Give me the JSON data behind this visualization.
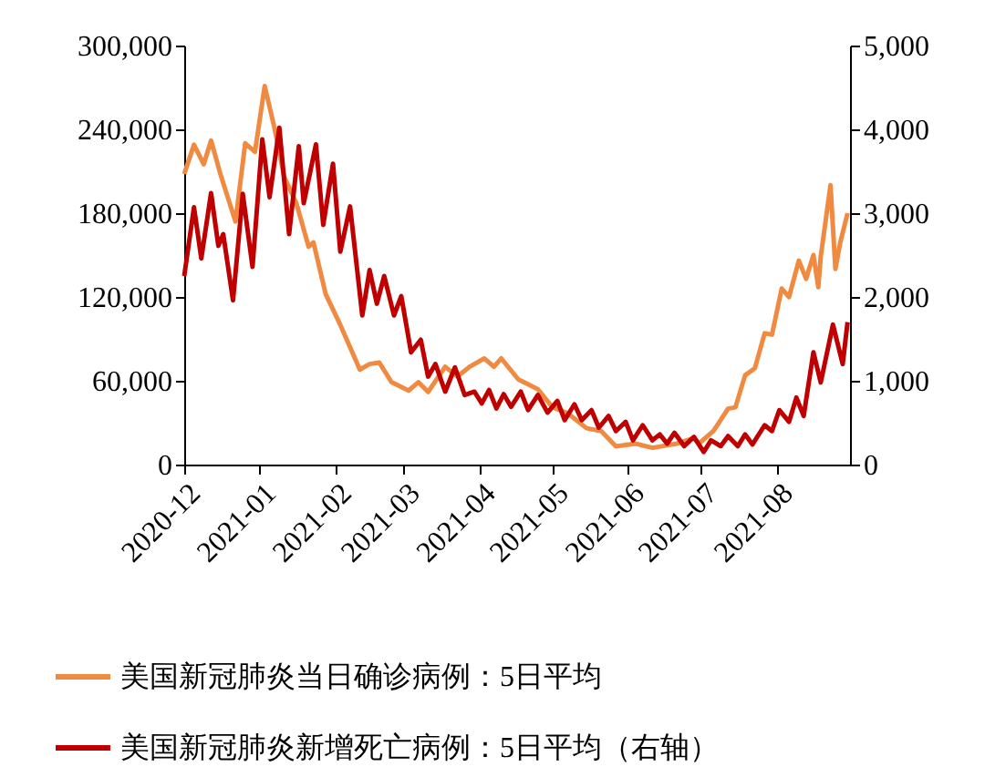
{
  "chart_data": {
    "type": "line",
    "xlim": [
      "2020-12-01",
      "2021-08-31"
    ],
    "xticks": [
      {
        "value": "2020-12-01",
        "label": "2020-12"
      },
      {
        "value": "2021-01-01",
        "label": "2021-01"
      },
      {
        "value": "2021-02-01",
        "label": "2021-02"
      },
      {
        "value": "2021-03-01",
        "label": "2021-03"
      },
      {
        "value": "2021-04-01",
        "label": "2021-04"
      },
      {
        "value": "2021-05-01",
        "label": "2021-05"
      },
      {
        "value": "2021-06-01",
        "label": "2021-06"
      },
      {
        "value": "2021-07-01",
        "label": "2021-07"
      },
      {
        "value": "2021-08-01",
        "label": "2021-08"
      }
    ],
    "ylim": [
      0,
      300000
    ],
    "yticks": [
      {
        "value": 0,
        "label": "0"
      },
      {
        "value": 60000,
        "label": "60,000"
      },
      {
        "value": 120000,
        "label": "120,000"
      },
      {
        "value": 180000,
        "label": "180,000"
      },
      {
        "value": 240000,
        "label": "240,000"
      },
      {
        "value": 300000,
        "label": "300,000"
      }
    ],
    "y2lim": [
      0,
      5000
    ],
    "y2ticks": [
      {
        "value": 0,
        "label": "0"
      },
      {
        "value": 1000,
        "label": "1,000"
      },
      {
        "value": 2000,
        "label": "2,000"
      },
      {
        "value": 3000,
        "label": "3,000"
      },
      {
        "value": 4000,
        "label": "4,000"
      },
      {
        "value": 5000,
        "label": "5,000"
      }
    ],
    "grid": false,
    "legend": "bottom",
    "line_style": "solid",
    "marker": "none",
    "series": [
      {
        "name": "美国新冠肺炎当日确诊病例：5日平均",
        "color": "#f08a41",
        "x": [
          "2020-12-01",
          "2020-12-05",
          "2020-12-09",
          "2020-12-12",
          "2020-12-16",
          "2020-12-22",
          "2020-12-26",
          "2020-12-30",
          "2021-01-03",
          "2021-01-07",
          "2021-01-11",
          "2021-01-16",
          "2021-01-21",
          "2021-01-23",
          "2021-01-28",
          "2021-02-03",
          "2021-02-11",
          "2021-02-15",
          "2021-02-19",
          "2021-02-24",
          "2021-03-03",
          "2021-03-07",
          "2021-03-11",
          "2021-03-18",
          "2021-03-23",
          "2021-03-28",
          "2021-04-03",
          "2021-04-07",
          "2021-04-10",
          "2021-04-17",
          "2021-04-25",
          "2021-05-01",
          "2021-05-07",
          "2021-05-15",
          "2021-05-21",
          "2021-05-27",
          "2021-06-04",
          "2021-06-11",
          "2021-06-21",
          "2021-06-28",
          "2021-06-30",
          "2021-07-06",
          "2021-07-12",
          "2021-07-15",
          "2021-07-19",
          "2021-07-23",
          "2021-07-27",
          "2021-07-30",
          "2021-08-03",
          "2021-08-06",
          "2021-08-10",
          "2021-08-13",
          "2021-08-16",
          "2021-08-18",
          "2021-08-19",
          "2021-08-23",
          "2021-08-25",
          "2021-08-27",
          "2021-08-30"
        ],
        "values": [
          208000,
          229000,
          215000,
          232000,
          207000,
          174000,
          230000,
          224000,
          271000,
          241000,
          206000,
          187000,
          156000,
          159000,
          122000,
          100000,
          68000,
          72000,
          73000,
          59000,
          53000,
          59000,
          52000,
          70000,
          63000,
          70000,
          76000,
          70000,
          76000,
          61000,
          54000,
          41000,
          37000,
          26000,
          24000,
          13000,
          15000,
          12000,
          15000,
          19000,
          15000,
          24000,
          40000,
          41000,
          64000,
          69000,
          94000,
          93000,
          126000,
          120000,
          146000,
          133000,
          150000,
          127000,
          149000,
          200000,
          140000,
          159000,
          180000
        ]
      },
      {
        "name": "美国新冠肺炎新增死亡病例：5日平均（右轴）",
        "color": "#c00000",
        "axis": "y2",
        "x": [
          "2020-12-01",
          "2020-12-05",
          "2020-12-08",
          "2020-12-12",
          "2020-12-15",
          "2020-12-17",
          "2020-12-21",
          "2020-12-25",
          "2020-12-29",
          "2021-01-02",
          "2021-01-05",
          "2021-01-09",
          "2021-01-13",
          "2021-01-17",
          "2021-01-19",
          "2021-01-24",
          "2021-01-27",
          "2021-01-31",
          "2021-02-03",
          "2021-02-07",
          "2021-02-12",
          "2021-02-15",
          "2021-02-18",
          "2021-02-21",
          "2021-02-25",
          "2021-02-28",
          "2021-03-04",
          "2021-03-08",
          "2021-03-11",
          "2021-03-14",
          "2021-03-18",
          "2021-03-22",
          "2021-03-26",
          "2021-03-30",
          "2021-04-02",
          "2021-04-05",
          "2021-04-08",
          "2021-04-11",
          "2021-04-14",
          "2021-04-18",
          "2021-04-21",
          "2021-04-25",
          "2021-04-29",
          "2021-05-03",
          "2021-05-06",
          "2021-05-10",
          "2021-05-13",
          "2021-05-17",
          "2021-05-20",
          "2021-05-24",
          "2021-05-27",
          "2021-05-31",
          "2021-06-03",
          "2021-06-07",
          "2021-06-11",
          "2021-06-14",
          "2021-06-17",
          "2021-06-20",
          "2021-06-24",
          "2021-06-28",
          "2021-07-02",
          "2021-07-05",
          "2021-07-09",
          "2021-07-12",
          "2021-07-16",
          "2021-07-19",
          "2021-07-22",
          "2021-07-27",
          "2021-07-30",
          "2021-08-02",
          "2021-08-06",
          "2021-08-09",
          "2021-08-12",
          "2021-08-16",
          "2021-08-19",
          "2021-08-24",
          "2021-08-28",
          "2021-08-30"
        ],
        "values": [
          2250,
          3070,
          2460,
          3240,
          2610,
          2750,
          1960,
          3230,
          2360,
          3880,
          3190,
          4020,
          2750,
          3800,
          3120,
          3820,
          2860,
          3590,
          2540,
          3080,
          1780,
          2320,
          1920,
          2250,
          1780,
          2010,
          1340,
          1490,
          1050,
          1200,
          870,
          1160,
          830,
          870,
          730,
          890,
          670,
          840,
          690,
          870,
          650,
          830,
          620,
          760,
          530,
          720,
          530,
          650,
          440,
          580,
          400,
          510,
          290,
          470,
          290,
          360,
          250,
          380,
          220,
          330,
          150,
          290,
          220,
          340,
          220,
          360,
          240,
          470,
          400,
          650,
          510,
          800,
          580,
          1340,
          980,
          1670,
          1200,
          1700
        ]
      }
    ]
  }
}
